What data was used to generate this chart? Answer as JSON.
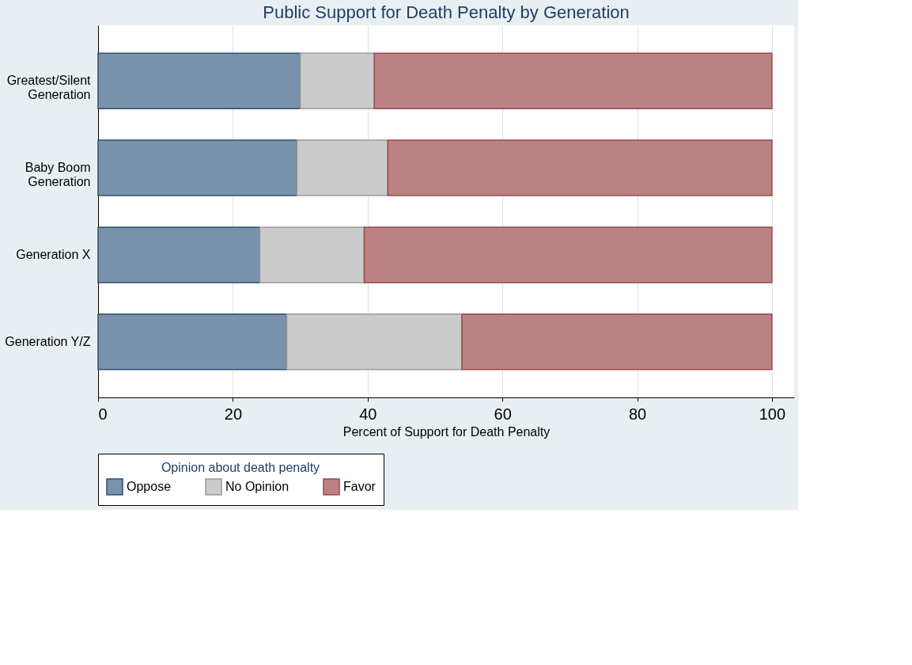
{
  "chart_data": {
    "type": "bar",
    "orientation": "horizontal",
    "stacked": true,
    "title": "Public Support for Death Penalty by Generation",
    "xlabel": "Percent of Support for Death Penalty",
    "legend_title": "Opinion about death penalty",
    "categories": [
      "Greatest/Silent\nGeneration",
      "Baby Boom\nGeneration",
      "Generation X",
      "Generation Y/Z"
    ],
    "series": [
      {
        "name": "Oppose",
        "color": "#7792aa",
        "values": [
          30,
          29.5,
          24,
          28
        ]
      },
      {
        "name": "No Opinion",
        "color": "#cbcbcb",
        "values": [
          11,
          13.5,
          15.5,
          26
        ]
      },
      {
        "name": "Favor",
        "color": "#bb8283",
        "values": [
          59,
          57,
          60.5,
          46
        ]
      }
    ],
    "xlim": [
      0,
      103.3
    ],
    "xticks": [
      0,
      20,
      40,
      60,
      80,
      100
    ],
    "grid": "x",
    "legend": "bottom"
  }
}
